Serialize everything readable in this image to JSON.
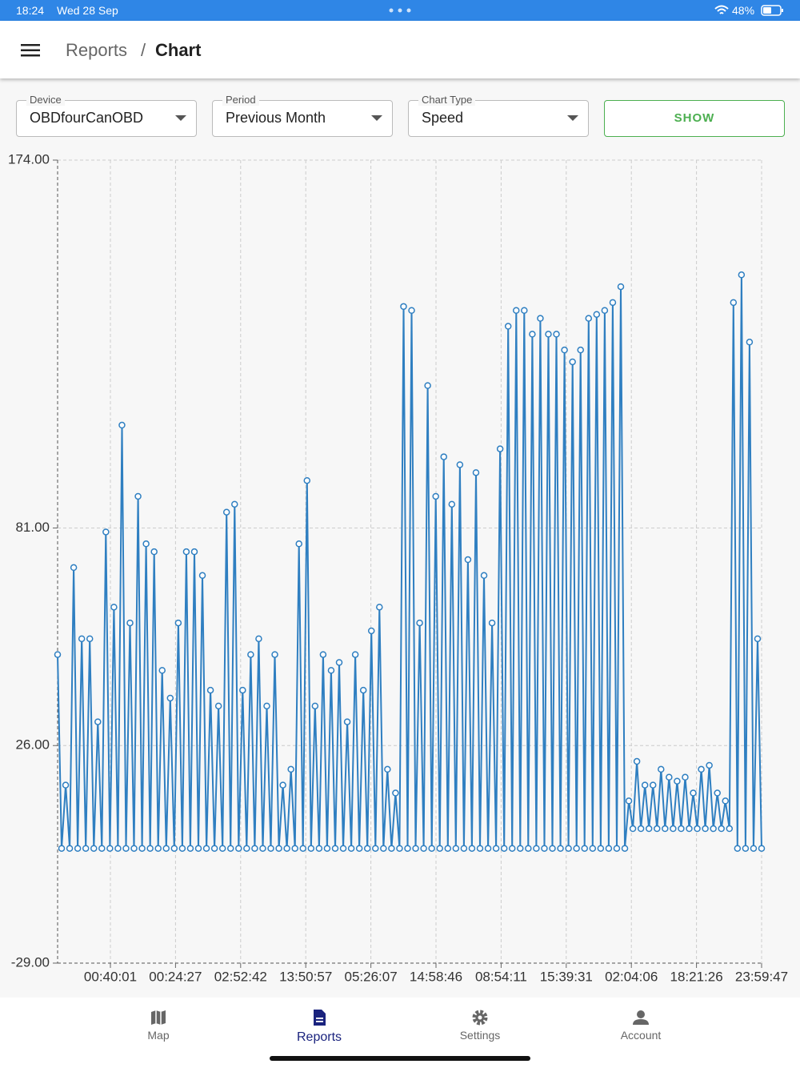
{
  "status": {
    "time": "18:24",
    "date": "Wed 28 Sep",
    "battery": "48%"
  },
  "header": {
    "section": "Reports",
    "separator": "/",
    "page": "Chart"
  },
  "filters": [
    {
      "label": "Device",
      "value": "OBDfourCanOBD"
    },
    {
      "label": "Period",
      "value": "Previous Month"
    },
    {
      "label": "Chart Type",
      "value": "Speed"
    }
  ],
  "button": "SHOW",
  "chart_data": {
    "type": "line",
    "color": "#2f7fc1",
    "grid": true,
    "ylim": [
      -29,
      174
    ],
    "yticks": [
      {
        "value": -29,
        "label": "-29.00"
      },
      {
        "value": 26,
        "label": "26.00"
      },
      {
        "value": 81,
        "label": "81.00"
      },
      {
        "value": 174,
        "label": "174.00"
      }
    ],
    "xtick_labels": [
      "00:40:01",
      "00:24:27",
      "02:52:42",
      "13:50:57",
      "05:26:07",
      "14:58:46",
      "08:54:11",
      "15:39:31",
      "02:04:06",
      "18:21:26",
      "23:59:47"
    ],
    "values": [
      49,
      0,
      16,
      0,
      71,
      0,
      53,
      0,
      53,
      0,
      32,
      0,
      80,
      0,
      61,
      0,
      107,
      0,
      57,
      0,
      89,
      0,
      77,
      0,
      75,
      0,
      45,
      0,
      38,
      0,
      57,
      0,
      75,
      0,
      75,
      0,
      69,
      0,
      40,
      0,
      36,
      0,
      85,
      0,
      87,
      0,
      40,
      0,
      49,
      0,
      53,
      0,
      36,
      0,
      49,
      0,
      16,
      0,
      20,
      0,
      77,
      0,
      93,
      0,
      36,
      0,
      49,
      0,
      45,
      0,
      47,
      0,
      32,
      0,
      49,
      0,
      40,
      0,
      55,
      0,
      61,
      0,
      20,
      0,
      14,
      0,
      137,
      0,
      136,
      0,
      57,
      0,
      117,
      0,
      89,
      0,
      99,
      0,
      87,
      0,
      97,
      0,
      73,
      0,
      95,
      0,
      69,
      0,
      57,
      0,
      101,
      0,
      132,
      0,
      136,
      0,
      136,
      0,
      130,
      0,
      134,
      0,
      130,
      0,
      130,
      0,
      126,
      0,
      123,
      0,
      126,
      0,
      134,
      0,
      135,
      0,
      136,
      0,
      138,
      0,
      142,
      0,
      12,
      5,
      22,
      5,
      16,
      5,
      16,
      5,
      20,
      5,
      18,
      5,
      17,
      5,
      18,
      5,
      14,
      5,
      20,
      5,
      21,
      5,
      14,
      5,
      12,
      5,
      138,
      0,
      145,
      0,
      128,
      0,
      53,
      0
    ]
  },
  "nav": [
    {
      "label": "Map",
      "active": false
    },
    {
      "label": "Reports",
      "active": true
    },
    {
      "label": "Settings",
      "active": false
    },
    {
      "label": "Account",
      "active": false
    }
  ]
}
